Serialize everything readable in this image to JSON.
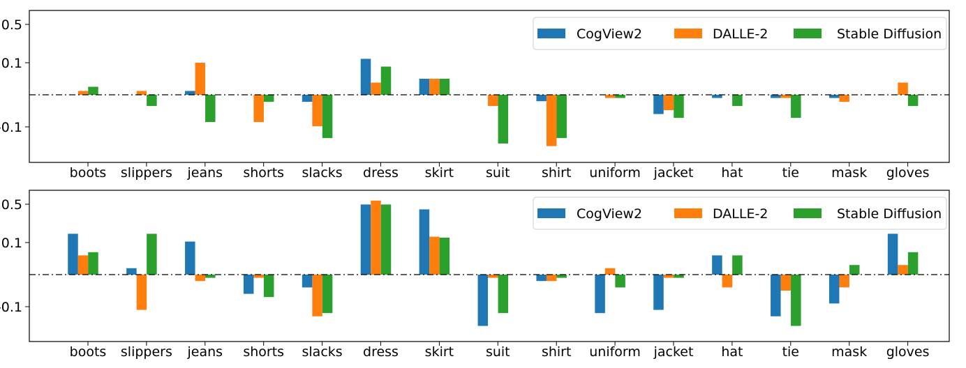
{
  "colors": {
    "series": [
      "#1f77b4",
      "#ff7f0e",
      "#2ca02c"
    ]
  },
  "chart_data": [
    {
      "type": "bar",
      "categories": [
        "boots",
        "slippers",
        "jeans",
        "shorts",
        "slacks",
        "dress",
        "skirt",
        "suit",
        "shirt",
        "uniform",
        "jacket",
        "hat",
        "tie",
        "mask",
        "gloves"
      ],
      "yticks": [
        "0.5",
        "0.1",
        "-0.1"
      ],
      "legend_position": "top-right",
      "grid": false,
      "series": [
        {
          "name": "CogView2",
          "values": [
            0,
            0,
            0.012,
            0,
            -0.022,
            0.138,
            0.05,
            0,
            -0.02,
            0,
            -0.06,
            -0.01,
            -0.01,
            -0.01,
            0
          ]
        },
        {
          "name": "DALLE-2",
          "values": [
            0.012,
            0.012,
            0.1,
            -0.085,
            -0.098,
            0.038,
            0.05,
            -0.035,
            -0.16,
            -0.01,
            -0.048,
            0,
            -0.01,
            -0.022,
            0.038
          ]
        },
        {
          "name": "Stable Diffusion",
          "values": [
            0.025,
            -0.035,
            -0.085,
            -0.022,
            -0.135,
            0.088,
            0.05,
            -0.152,
            -0.135,
            -0.01,
            -0.072,
            -0.035,
            -0.072,
            0,
            -0.035
          ]
        }
      ]
    },
    {
      "type": "bar",
      "categories": [
        "boots",
        "slippers",
        "jeans",
        "shorts",
        "slacks",
        "dress",
        "skirt",
        "suit",
        "shirt",
        "uniform",
        "jacket",
        "hat",
        "tie",
        "mask",
        "gloves"
      ],
      "yticks": [
        "0.5",
        "0.1",
        "-0.1"
      ],
      "legend_position": "top-right",
      "grid": false,
      "series": [
        {
          "name": "CogView2",
          "values": [
            0.19,
            0.02,
            0.11,
            -0.06,
            -0.04,
            0.49,
            0.44,
            -0.16,
            -0.02,
            -0.12,
            -0.11,
            0.06,
            -0.13,
            -0.09,
            0.19
          ]
        },
        {
          "name": "DALLE-2",
          "values": [
            0.06,
            -0.11,
            -0.02,
            -0.01,
            -0.13,
            0.53,
            0.16,
            -0.01,
            -0.02,
            0.02,
            -0.01,
            -0.04,
            -0.05,
            -0.04,
            0.03
          ]
        },
        {
          "name": "Stable Diffusion",
          "values": [
            0.07,
            0.19,
            -0.01,
            -0.07,
            -0.12,
            0.49,
            0.15,
            -0.12,
            -0.01,
            -0.04,
            -0.01,
            0.06,
            -0.16,
            0.03,
            0.07
          ]
        }
      ]
    }
  ]
}
